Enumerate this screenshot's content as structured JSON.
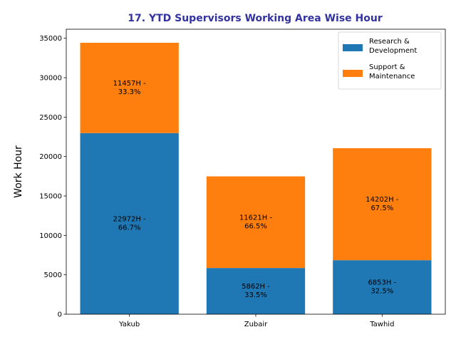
{
  "chart_data": {
    "type": "bar",
    "stacked": true,
    "title": "17. YTD Supervisors Working Area Wise Hour",
    "title_color": "#3333a0",
    "xlabel": "",
    "ylabel": "Work Hour",
    "ylim": [
      0,
      36150
    ],
    "yticks": [
      0,
      5000,
      10000,
      15000,
      20000,
      25000,
      30000,
      35000
    ],
    "grid": false,
    "legend_position": "top-right",
    "categories": [
      "Yakub",
      "Zubair",
      "Tawhid"
    ],
    "series": [
      {
        "name_lines": [
          "Research &",
          "Development"
        ],
        "color": "#1f77b4",
        "values": [
          22972,
          5862,
          6853
        ],
        "labels": [
          [
            "22972H -",
            "66.7%"
          ],
          [
            "5862H -",
            "33.5%"
          ],
          [
            "6853H -",
            "32.5%"
          ]
        ]
      },
      {
        "name_lines": [
          "Support &",
          "Maintenance"
        ],
        "color": "#ff7f0e",
        "values": [
          11457,
          11621,
          14202
        ],
        "labels": [
          [
            "11457H -",
            "33.3%"
          ],
          [
            "11621H -",
            "66.5%"
          ],
          [
            "14202H -",
            "67.5%"
          ]
        ]
      }
    ]
  }
}
